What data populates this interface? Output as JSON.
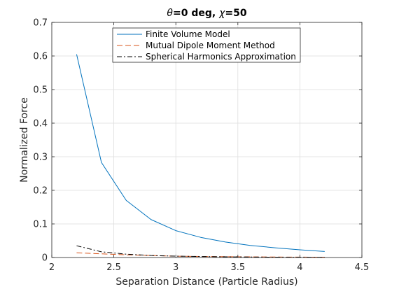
{
  "chart_data": {
    "type": "line",
    "title": {
      "prefix": "θ",
      "middle": "=0 deg, ",
      "chi": "χ",
      "suffix": "=50"
    },
    "xlabel": "Separation Distance (Particle Radius)",
    "ylabel": "Normalized Force",
    "xlim": [
      2,
      4.5
    ],
    "ylim": [
      0,
      0.7
    ],
    "xticks": [
      "2",
      "2.5",
      "3",
      "3.5",
      "4",
      "4.5"
    ],
    "yticks": [
      "0",
      "0.1",
      "0.2",
      "0.3",
      "0.4",
      "0.5",
      "0.6",
      "0.7"
    ],
    "grid": true,
    "legend_placement": "top-center",
    "x": [
      2.2,
      2.4,
      2.6,
      2.8,
      3.0,
      3.2,
      3.4,
      3.6,
      3.8,
      4.0,
      4.2
    ],
    "series": [
      {
        "name": "Finite Volume Model",
        "color": "#0072BD",
        "style": "solid",
        "values": [
          0.605,
          0.283,
          0.17,
          0.113,
          0.08,
          0.06,
          0.046,
          0.036,
          0.029,
          0.023,
          0.018
        ]
      },
      {
        "name": "Mutual Dipole Moment Method",
        "color": "#D95319",
        "style": "dashed",
        "values": [
          0.014,
          0.011,
          0.008,
          0.006,
          0.004,
          0.003,
          0.0025,
          0.002,
          0.0015,
          0.0012,
          0.001
        ]
      },
      {
        "name": "Spherical Harmonics Approximation",
        "color": "#000000",
        "style": "dashdot",
        "values": [
          0.035,
          0.017,
          0.01,
          0.006,
          0.004,
          0.003,
          0.002,
          0.0015,
          0.001,
          0.0008,
          0.0006
        ]
      }
    ]
  }
}
